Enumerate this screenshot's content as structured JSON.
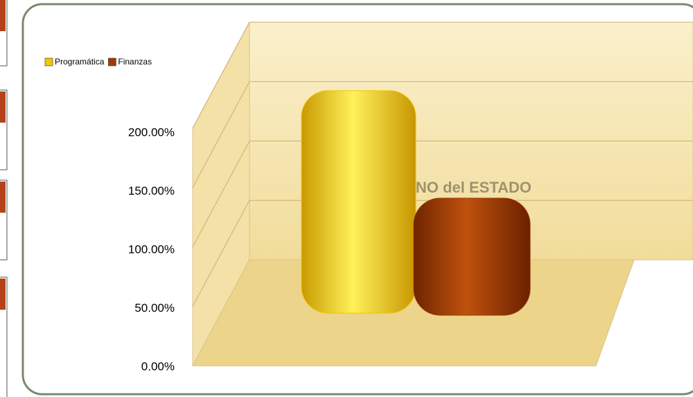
{
  "chart_data": {
    "type": "bar",
    "categories": [
      null
    ],
    "series": [
      {
        "name": "Programática",
        "color": "#f2c500",
        "values": [
          190
        ]
      },
      {
        "name": "Finanzas",
        "color": "#a13a05",
        "values": [
          100
        ]
      }
    ],
    "ylim": [
      0,
      200
    ],
    "yticks": [
      {
        "value": 0,
        "label": "0.00%"
      },
      {
        "value": 50,
        "label": "50.00%"
      },
      {
        "value": 100,
        "label": "100.00%"
      },
      {
        "value": 150,
        "label": "150.00%"
      },
      {
        "value": 200,
        "label": "200.00%"
      }
    ],
    "grid": true,
    "legend": "top-left"
  }
}
